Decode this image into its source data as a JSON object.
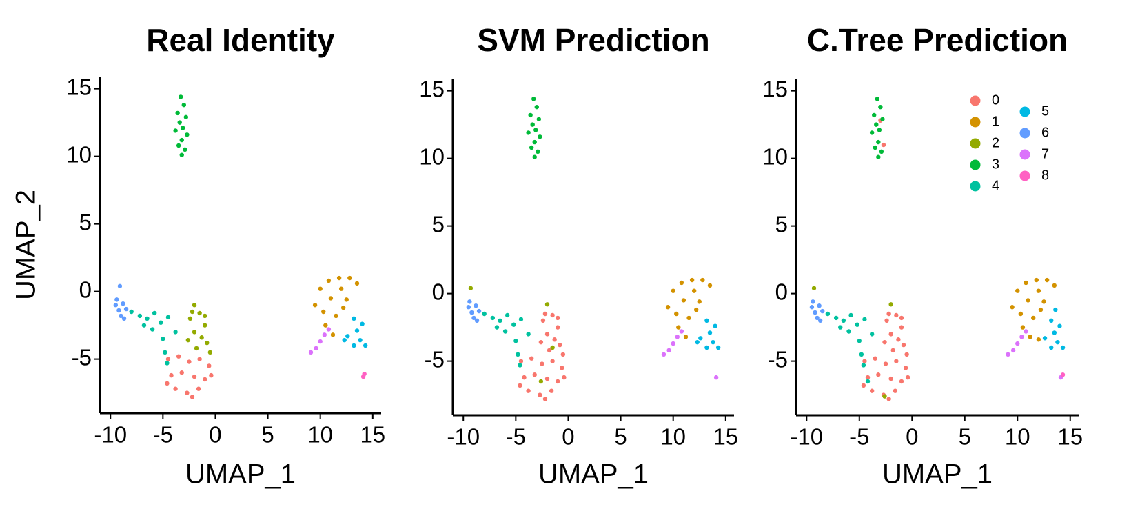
{
  "chart_data": [
    {
      "type": "scatter",
      "title": "Real Identity",
      "x_label": "UMAP_1",
      "y_label": "UMAP_2",
      "xlim": [
        -11,
        15.8
      ],
      "ylim": [
        -9,
        15.9
      ],
      "xticks": [
        -10,
        -5,
        0,
        5,
        10,
        15
      ],
      "yticks": [
        -5,
        0,
        5,
        10,
        15
      ],
      "series": [
        {
          "color": "#F8766D",
          "x": [
            -4.5,
            -3.5,
            -2.5,
            -1.5,
            -0.6,
            -4.2,
            -3.2,
            -2.0,
            -1.0,
            -3.8,
            -2.7,
            -1.6,
            -4.6,
            -0.4,
            -2.2
          ],
          "y": [
            -5.0,
            -4.8,
            -5.2,
            -5.0,
            -5.5,
            -6.2,
            -6.0,
            -6.3,
            -6.5,
            -7.2,
            -7.5,
            -7.2,
            -6.8,
            -6.2,
            -7.8
          ]
        },
        {
          "color": "#D39200",
          "x": [
            9.5,
            10.0,
            10.8,
            11.8,
            12.8,
            13.5,
            10.3,
            11.0,
            12.0,
            12.5,
            10.5,
            11.2,
            11.5,
            12.2
          ],
          "y": [
            -1.0,
            0.2,
            0.8,
            1.0,
            1.0,
            0.6,
            -1.5,
            -0.5,
            0.2,
            -0.6,
            -2.5,
            -3.2,
            -1.8,
            -1.2
          ]
        },
        {
          "color": "#93AA00",
          "x": [
            -2.0,
            -1.5,
            -2.4,
            -1.0,
            -2.0,
            -1.3,
            -2.6,
            -0.8,
            -1.8,
            -0.5,
            -2.2,
            -1.0
          ],
          "y": [
            -1.0,
            -1.6,
            -2.0,
            -2.5,
            -3.0,
            -3.4,
            -3.6,
            -3.8,
            -4.2,
            -4.5,
            -1.5,
            -1.8
          ]
        },
        {
          "color": "#00BA38",
          "x": [
            -3.3,
            -3.0,
            -3.6,
            -2.8,
            -3.4,
            -3.1,
            -3.8,
            -2.7,
            -3.2,
            -3.5,
            -2.9,
            -3.2
          ],
          "y": [
            14.4,
            13.8,
            13.2,
            12.9,
            12.5,
            12.1,
            11.9,
            11.6,
            11.2,
            10.8,
            10.5,
            10.1
          ]
        },
        {
          "color": "#00C19F",
          "x": [
            -8.0,
            -7.2,
            -6.5,
            -5.8,
            -5.2,
            -6.0,
            -5.0,
            -4.8,
            -6.8,
            -4.5,
            -3.8,
            -4.6
          ],
          "y": [
            -1.5,
            -1.8,
            -2.0,
            -1.6,
            -2.3,
            -2.8,
            -3.5,
            -4.5,
            -2.5,
            -1.9,
            -3.0,
            -5.3
          ]
        },
        {
          "color": "#00B9E3",
          "x": [
            13.2,
            13.5,
            12.6,
            13.8,
            14.3,
            13.2,
            14.0,
            12.3
          ],
          "y": [
            -2.0,
            -2.9,
            -3.3,
            -3.6,
            -4.0,
            -4.0,
            -2.4,
            -3.6
          ]
        },
        {
          "color": "#619CFF",
          "x": [
            -9.5,
            -9.2,
            -8.8,
            -9.0,
            -8.5,
            -9.4,
            -8.7,
            -9.1
          ],
          "y": [
            -1.0,
            -1.4,
            -0.9,
            -1.8,
            -1.3,
            -0.6,
            -2.0,
            0.4
          ]
        },
        {
          "color": "#DB72FB",
          "x": [
            9.1,
            9.6,
            10.0,
            10.4,
            10.8
          ],
          "y": [
            -4.5,
            -4.2,
            -3.7,
            -3.2,
            -2.8
          ]
        },
        {
          "color": "#FF61C3",
          "x": [
            14.2,
            14.1
          ],
          "y": [
            -6.1,
            -6.3
          ]
        }
      ]
    },
    {
      "type": "scatter",
      "title": "SVM Prediction",
      "x_label": "UMAP_1",
      "xlim": [
        -11,
        15.8
      ],
      "ylim": [
        -9,
        15.9
      ],
      "xticks": [
        -10,
        -5,
        0,
        5,
        10,
        15
      ],
      "yticks": [
        -5,
        0,
        5,
        10,
        15
      ],
      "series": [
        {
          "color": "#F8766D",
          "x": [
            -4.5,
            -3.5,
            -2.5,
            -1.5,
            -0.6,
            -4.2,
            -3.2,
            -2.0,
            -1.0,
            -3.8,
            -2.7,
            -1.6,
            -4.6,
            -0.4,
            -2.2,
            -1.5,
            -2.4,
            -1.0,
            -2.0,
            -1.3,
            -2.6,
            -0.8,
            -1.8,
            -0.5,
            -2.2,
            -1.0
          ],
          "y": [
            -5.0,
            -4.8,
            -5.2,
            -5.0,
            -5.5,
            -6.2,
            -6.0,
            -6.3,
            -6.5,
            -7.2,
            -7.5,
            -7.2,
            -6.8,
            -6.2,
            -7.8,
            -1.6,
            -2.0,
            -2.5,
            -3.0,
            -3.4,
            -3.6,
            -3.8,
            -4.2,
            -4.5,
            -1.5,
            -1.8
          ]
        },
        {
          "color": "#D39200",
          "x": [
            9.5,
            10.0,
            10.8,
            11.8,
            12.8,
            13.5,
            10.3,
            11.0,
            12.0,
            12.5,
            10.5,
            11.2,
            11.5,
            12.2
          ],
          "y": [
            -1.0,
            0.2,
            0.8,
            1.0,
            1.0,
            0.6,
            -1.5,
            -0.5,
            0.2,
            -0.6,
            -2.5,
            -3.2,
            -1.8,
            -1.2
          ]
        },
        {
          "color": "#93AA00",
          "x": [
            -9.3,
            -2.0,
            -1.5,
            -2.6
          ],
          "y": [
            0.4,
            -0.8,
            -4.0,
            -6.5
          ]
        },
        {
          "color": "#00BA38",
          "x": [
            -3.3,
            -3.0,
            -3.6,
            -2.8,
            -3.4,
            -3.1,
            -3.8,
            -2.7,
            -3.2,
            -3.5,
            -2.9,
            -3.2
          ],
          "y": [
            14.4,
            13.8,
            13.2,
            12.9,
            12.5,
            12.1,
            11.9,
            11.6,
            11.2,
            10.8,
            10.5,
            10.1
          ]
        },
        {
          "color": "#00C19F",
          "x": [
            -8.0,
            -7.2,
            -6.5,
            -5.8,
            -5.2,
            -6.0,
            -5.0,
            -4.8,
            -6.8,
            -4.5,
            -3.8,
            -4.6
          ],
          "y": [
            -1.5,
            -1.8,
            -2.0,
            -1.6,
            -2.3,
            -2.8,
            -3.5,
            -4.5,
            -2.5,
            -1.9,
            -3.0,
            -5.3
          ]
        },
        {
          "color": "#00B9E3",
          "x": [
            13.2,
            13.5,
            12.6,
            13.8,
            14.3,
            13.2,
            14.0,
            12.3
          ],
          "y": [
            -2.0,
            -2.9,
            -3.3,
            -3.6,
            -4.0,
            -4.0,
            -2.4,
            -3.6
          ]
        },
        {
          "color": "#619CFF",
          "x": [
            -9.5,
            -9.2,
            -8.8,
            -9.0,
            -8.5,
            -9.4,
            -8.7
          ],
          "y": [
            -1.0,
            -1.4,
            -0.9,
            -1.8,
            -1.3,
            -0.6,
            -2.0
          ]
        },
        {
          "color": "#DB72FB",
          "x": [
            9.1,
            9.6,
            10.0,
            10.4,
            10.8,
            14.1
          ],
          "y": [
            -4.5,
            -4.2,
            -3.7,
            -3.2,
            -2.8,
            -6.2
          ]
        }
      ]
    },
    {
      "type": "scatter",
      "title": "C.Tree Prediction",
      "x_label": "UMAP_1",
      "xlim": [
        -11,
        15.8
      ],
      "ylim": [
        -9,
        15.9
      ],
      "xticks": [
        -10,
        -5,
        0,
        5,
        10,
        15
      ],
      "yticks": [
        -5,
        0,
        5,
        10,
        15
      ],
      "legend": "top-right",
      "series": [
        {
          "name": "0",
          "color": "#F8766D",
          "x": [
            -4.5,
            -3.5,
            -2.5,
            -1.5,
            -0.6,
            -4.2,
            -3.2,
            -2.0,
            -1.0,
            -3.8,
            -2.7,
            -1.6,
            -4.6,
            -0.4,
            -2.2,
            -1.5,
            -2.4,
            -1.0,
            -2.0,
            -1.3,
            -2.6,
            -0.8,
            -1.8,
            -0.5,
            -2.2,
            -1.0,
            -3.0,
            -2.7
          ],
          "y": [
            -5.0,
            -4.8,
            -5.2,
            -5.0,
            -5.5,
            -6.2,
            -6.0,
            -6.3,
            -6.5,
            -7.2,
            -7.5,
            -7.2,
            -6.8,
            -6.2,
            -7.8,
            -1.6,
            -2.0,
            -2.5,
            -3.0,
            -3.4,
            -3.6,
            -3.8,
            -4.2,
            -4.5,
            -1.5,
            -1.8,
            12.8,
            11.0
          ]
        },
        {
          "name": "1",
          "color": "#D39200",
          "x": [
            9.5,
            10.0,
            10.8,
            11.8,
            12.8,
            13.5,
            10.3,
            11.0,
            12.0,
            12.5,
            10.5,
            11.2,
            11.5,
            12.2,
            12.0
          ],
          "y": [
            -1.0,
            0.2,
            0.8,
            1.0,
            1.0,
            0.6,
            -1.5,
            -0.5,
            0.2,
            -0.6,
            -2.5,
            -3.2,
            -1.8,
            -1.2,
            -3.4
          ]
        },
        {
          "name": "2",
          "color": "#93AA00",
          "x": [
            -9.3,
            -2.0,
            -2.6
          ],
          "y": [
            0.4,
            -0.8,
            -7.6
          ]
        },
        {
          "name": "3",
          "color": "#00BA38",
          "x": [
            -3.3,
            -3.0,
            -3.6,
            -2.8,
            -3.4,
            -3.1,
            -3.8,
            -3.2,
            -3.5,
            -2.9,
            -3.2
          ],
          "y": [
            14.4,
            13.8,
            13.2,
            12.9,
            12.5,
            12.1,
            11.9,
            11.2,
            10.8,
            10.5,
            10.1
          ]
        },
        {
          "name": "4",
          "color": "#00C19F",
          "x": [
            -8.0,
            -7.2,
            -6.5,
            -5.8,
            -5.2,
            -6.0,
            -5.0,
            -4.8,
            -6.8,
            -4.5,
            -3.8,
            -4.6,
            -4.2
          ],
          "y": [
            -1.5,
            -1.8,
            -2.0,
            -1.6,
            -2.3,
            -2.8,
            -3.5,
            -4.5,
            -2.5,
            -1.9,
            -3.0,
            -5.3,
            -6.5
          ]
        },
        {
          "name": "5",
          "color": "#00B9E3",
          "x": [
            13.2,
            13.5,
            12.6,
            13.8,
            14.3,
            13.2,
            14.0,
            13.6
          ],
          "y": [
            -2.0,
            -2.9,
            -3.3,
            -3.6,
            -4.0,
            -4.0,
            -2.4,
            -1.2
          ]
        },
        {
          "name": "6",
          "color": "#619CFF",
          "x": [
            -9.5,
            -9.2,
            -8.8,
            -9.0,
            -8.5,
            -9.4,
            -8.7
          ],
          "y": [
            -1.0,
            -1.4,
            -0.9,
            -1.8,
            -1.3,
            -0.6,
            -2.0
          ]
        },
        {
          "name": "7",
          "color": "#DB72FB",
          "x": [
            9.1,
            9.6,
            10.0,
            10.4,
            10.8,
            14.1
          ],
          "y": [
            -4.5,
            -4.2,
            -3.7,
            -3.2,
            -2.8,
            -6.2
          ]
        },
        {
          "name": "8",
          "color": "#FF61C3",
          "x": [
            14.3
          ],
          "y": [
            -6.0
          ]
        }
      ]
    }
  ]
}
